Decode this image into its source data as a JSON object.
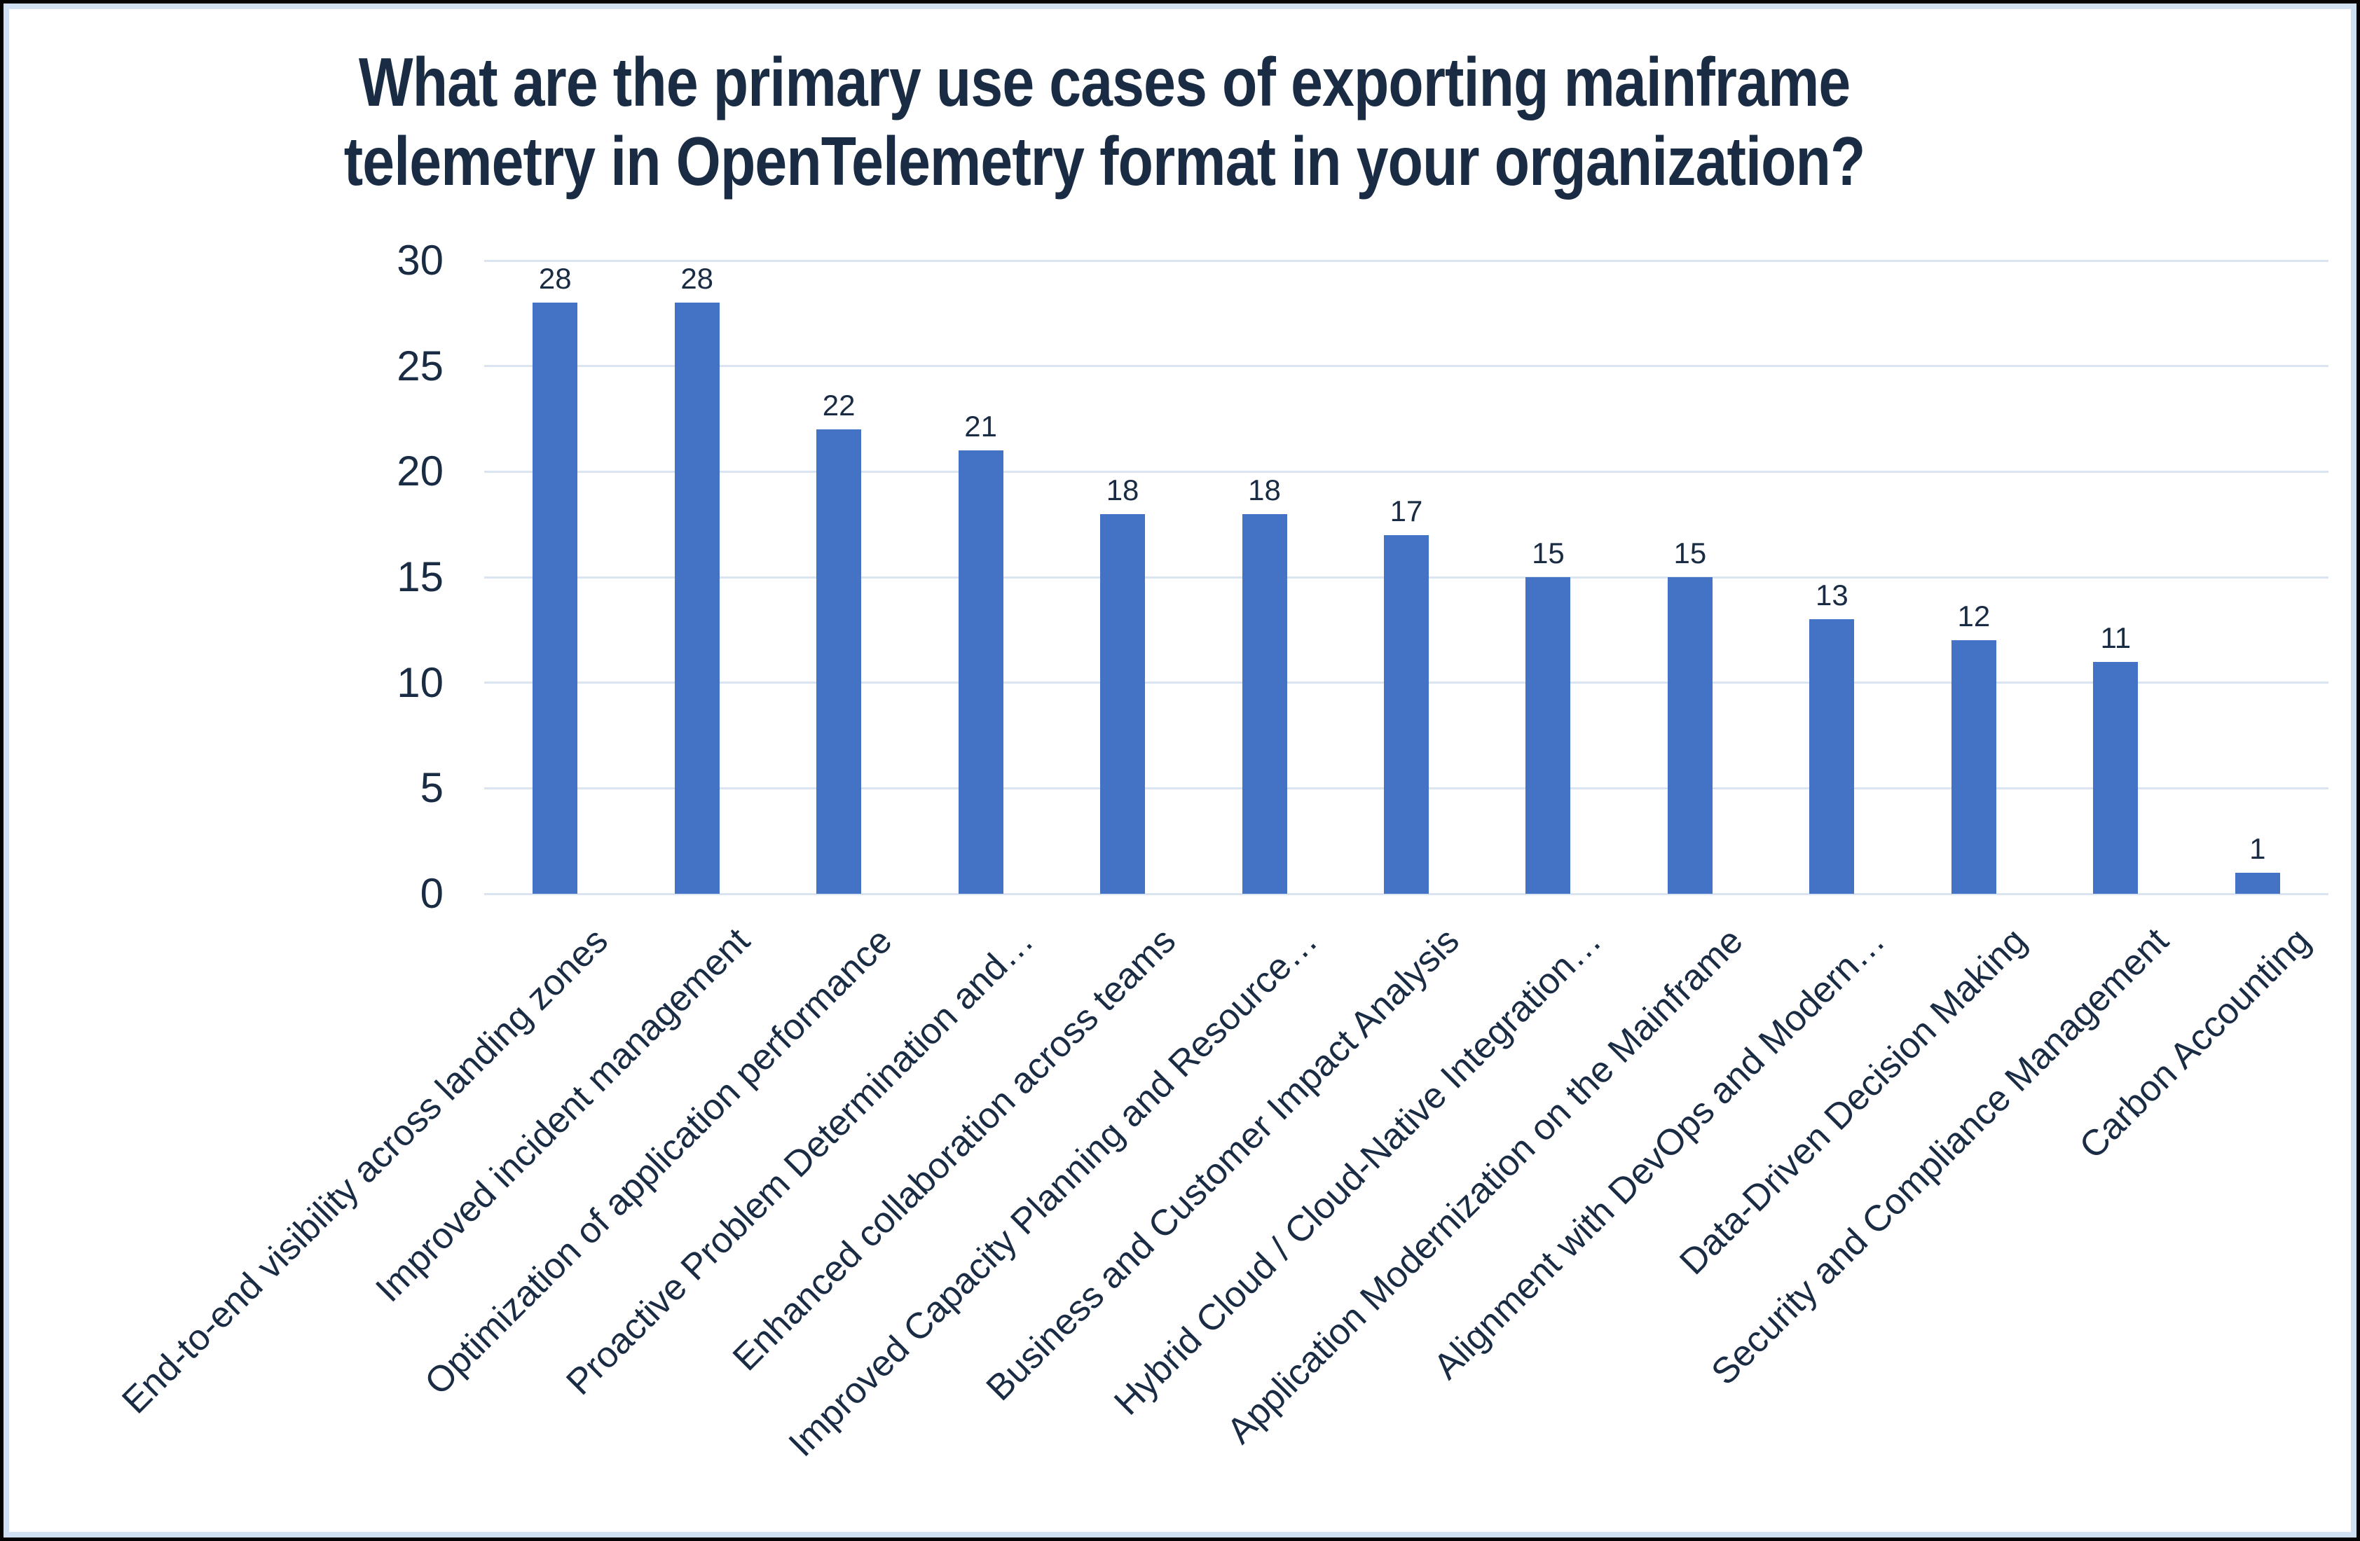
{
  "title": {
    "line1": "What are the primary use cases of exporting mainframe",
    "line2": "telemetry in OpenTelemetry format in your organization?"
  },
  "chart_data": {
    "type": "bar",
    "title": "What are the primary use cases of exporting mainframe telemetry in OpenTelemetry format in your organization?",
    "categories": [
      "End-to-end visibility across landing zones",
      "Improved incident management",
      "Optimization of application performance",
      "Proactive Problem Determination and…",
      "Enhanced collaboration across teams",
      "Improved Capacity Planning and Resource…",
      "Business and Customer Impact Analysis",
      "Hybrid Cloud / Cloud-Native Integration…",
      "Application Modernization on the Mainframe",
      "Alignment with DevOps and Modern…",
      "Data-Driven Decision Making",
      "Security and Compliance Management",
      "Carbon Accounting"
    ],
    "values": [
      28,
      28,
      22,
      21,
      18,
      18,
      17,
      15,
      15,
      13,
      12,
      11,
      1
    ],
    "xlabel": "",
    "ylabel": "",
    "ylim": [
      0,
      30
    ],
    "yticks": [
      0,
      5,
      10,
      15,
      20,
      25,
      30
    ],
    "grid": true,
    "legend": "none",
    "data_labels": true,
    "category_label_rotation_deg": 45
  },
  "colors": {
    "bar_fill": "#4472C4",
    "text": "#1a2c44",
    "gridline": "#dbe5f2",
    "inner_frame": "#cfe0f3",
    "outer_frame": "#050505",
    "background": "#ffffff"
  }
}
